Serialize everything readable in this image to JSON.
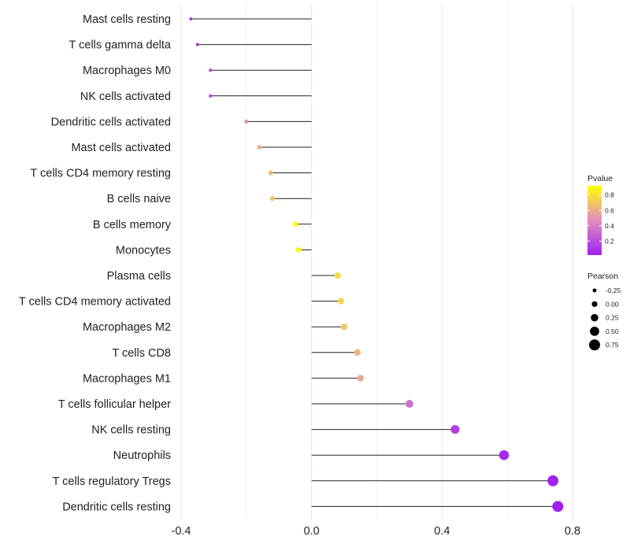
{
  "chart_data": {
    "type": "lollipop",
    "title": "",
    "xlabel": "",
    "ylabel": "",
    "xlim": [
      -0.4,
      0.8
    ],
    "x_ticks": [
      -0.4,
      0.0,
      0.4,
      0.8
    ],
    "x_tick_labels": [
      "-0.4",
      "0.0",
      "0.4",
      "0.8"
    ],
    "grid": true,
    "categories": [
      "Mast cells resting",
      "T cells gamma delta",
      "Macrophages M0",
      "NK cells activated",
      "Dendritic cells activated",
      "Mast cells activated",
      "T cells CD4 memory resting",
      "B cells naive",
      "B cells memory",
      "Monocytes",
      "Plasma cells",
      "T cells CD4 memory activated",
      "Macrophages M2",
      "T cells CD8",
      "Macrophages M1",
      "T cells follicular helper",
      "NK cells resting",
      "Neutrophils",
      "T cells regulatory  Tregs",
      "Dendritic cells resting"
    ],
    "values": [
      -0.37,
      -0.35,
      -0.31,
      -0.31,
      -0.2,
      -0.16,
      -0.125,
      -0.12,
      -0.05,
      -0.04,
      0.08,
      0.09,
      0.1,
      0.14,
      0.15,
      0.3,
      0.44,
      0.59,
      0.74,
      0.755
    ],
    "pvalues": [
      0.08,
      0.12,
      0.2,
      0.18,
      0.5,
      0.6,
      0.65,
      0.68,
      0.92,
      0.9,
      0.78,
      0.75,
      0.7,
      0.62,
      0.58,
      0.35,
      0.15,
      0.05,
      0.02,
      0.01
    ],
    "legend_pvalue": {
      "title": "Pvalue",
      "ticks": [
        0.2,
        0.4,
        0.6,
        0.8
      ],
      "tick_labels": [
        "0.2",
        "0.4",
        "0.6",
        "0.8"
      ],
      "range": [
        0.02,
        0.92
      ],
      "color_low": "#a120f0",
      "color_mid": "#e08ec0",
      "color_high": "#ffff00",
      "placement": "right"
    },
    "legend_pearson": {
      "title": "Pearson",
      "entries": [
        -0.25,
        0.0,
        0.25,
        0.5,
        0.75
      ],
      "entry_labels": [
        "-0.25",
        "0.00",
        "0.25",
        "0.50",
        "0.75"
      ],
      "placement": "right"
    }
  }
}
